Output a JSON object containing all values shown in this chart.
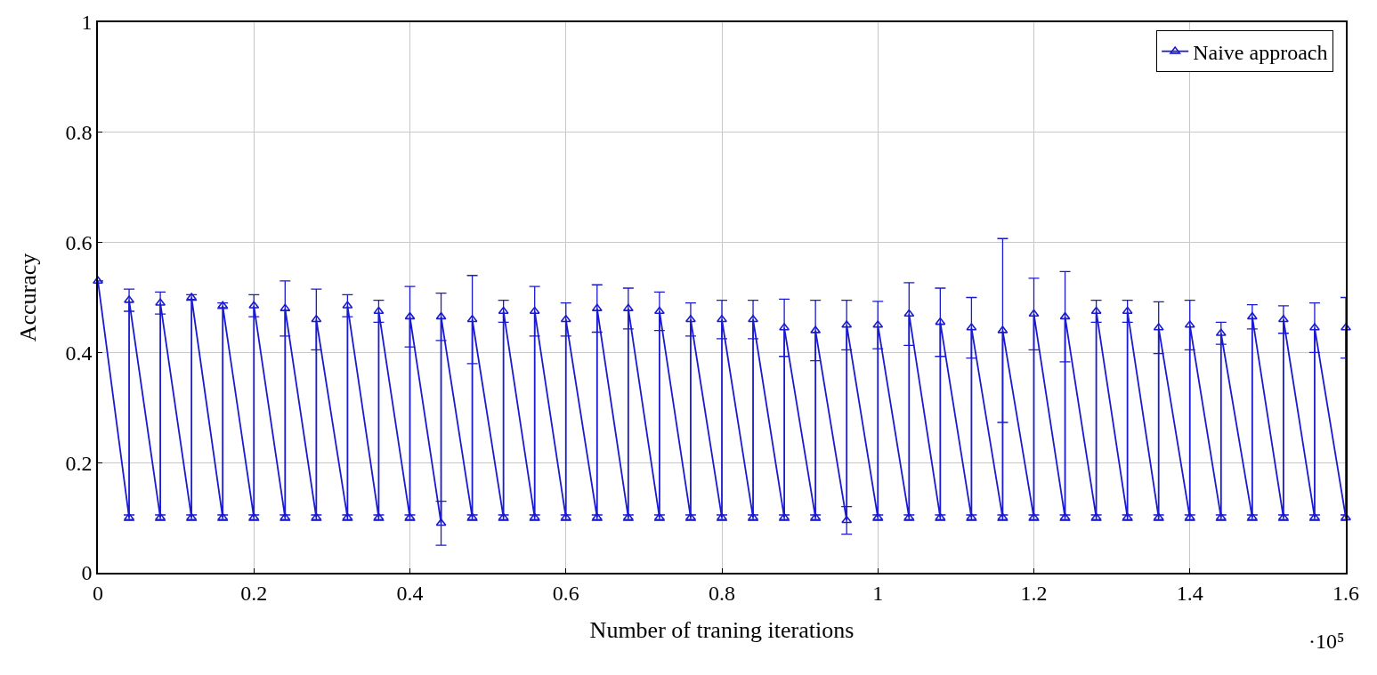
{
  "chart_data": {
    "type": "line",
    "xlabel": "Number of traning iterations",
    "ylabel": "Accuracy",
    "annotations": [
      "·10⁵"
    ],
    "x": [
      0,
      0.04,
      0.04,
      0.08,
      0.08,
      0.12,
      0.12,
      0.16,
      0.16,
      0.2,
      0.2,
      0.24,
      0.24,
      0.28,
      0.28,
      0.32,
      0.32,
      0.36,
      0.36,
      0.4,
      0.4,
      0.44,
      0.44,
      0.48,
      0.48,
      0.52,
      0.52,
      0.56,
      0.56,
      0.6,
      0.6,
      0.64,
      0.64,
      0.68,
      0.68,
      0.72,
      0.72,
      0.76,
      0.76,
      0.8,
      0.8,
      0.84,
      0.84,
      0.88,
      0.88,
      0.92,
      0.92,
      0.96,
      0.96,
      1.0,
      1.0,
      1.04,
      1.04,
      1.08,
      1.08,
      1.12,
      1.12,
      1.16,
      1.16,
      1.2,
      1.2,
      1.24,
      1.24,
      1.28,
      1.28,
      1.32,
      1.32,
      1.36,
      1.36,
      1.4,
      1.4,
      1.44,
      1.44,
      1.48,
      1.48,
      1.52,
      1.52,
      1.56,
      1.56,
      1.6,
      1.6
    ],
    "series": [
      {
        "name": "Naive approach",
        "color": "#1a1ad0",
        "values": [
          0.53,
          0.1,
          0.495,
          0.1,
          0.49,
          0.1,
          0.5,
          0.1,
          0.485,
          0.1,
          0.485,
          0.1,
          0.48,
          0.1,
          0.46,
          0.1,
          0.485,
          0.1,
          0.475,
          0.1,
          0.465,
          0.09,
          0.465,
          0.1,
          0.46,
          0.1,
          0.475,
          0.1,
          0.475,
          0.1,
          0.46,
          0.1,
          0.48,
          0.1,
          0.48,
          0.1,
          0.475,
          0.1,
          0.46,
          0.1,
          0.46,
          0.1,
          0.46,
          0.1,
          0.445,
          0.1,
          0.44,
          0.095,
          0.45,
          0.1,
          0.45,
          0.1,
          0.47,
          0.1,
          0.455,
          0.1,
          0.445,
          0.1,
          0.44,
          0.1,
          0.47,
          0.1,
          0.465,
          0.1,
          0.475,
          0.1,
          0.475,
          0.1,
          0.445,
          0.1,
          0.45,
          0.1,
          0.435,
          0.1,
          0.465,
          0.1,
          0.46,
          0.1,
          0.445,
          0.1,
          0.445
        ],
        "errors": [
          null,
          0.005,
          0.02,
          0.005,
          0.02,
          0.005,
          0.005,
          0.005,
          0.005,
          0.005,
          0.02,
          0.005,
          0.05,
          0.005,
          0.055,
          0.005,
          0.02,
          0.005,
          0.02,
          0.005,
          0.055,
          0.04,
          0.043,
          0.005,
          0.08,
          0.005,
          0.02,
          0.005,
          0.045,
          0.005,
          0.03,
          0.005,
          0.043,
          0.005,
          0.037,
          0.005,
          0.035,
          0.005,
          0.03,
          0.005,
          0.035,
          0.005,
          0.035,
          0.005,
          0.052,
          0.005,
          0.055,
          0.025,
          0.045,
          0.005,
          0.043,
          0.005,
          0.057,
          0.005,
          0.062,
          0.005,
          0.055,
          0.005,
          0.167,
          0.005,
          0.065,
          0.005,
          0.082,
          0.005,
          0.02,
          0.005,
          0.02,
          0.005,
          0.047,
          0.005,
          0.045,
          0.005,
          0.02,
          0.005,
          0.022,
          0.005,
          0.025,
          0.005,
          0.045,
          0.005,
          0.055
        ]
      }
    ],
    "xlim": [
      0,
      1.6
    ],
    "xticks": [
      0,
      0.2,
      0.4,
      0.6,
      0.8,
      1,
      1.2,
      1.4,
      1.6
    ],
    "ylim": [
      0,
      1
    ],
    "yticks": [
      0,
      0.2,
      0.4,
      0.6,
      0.8,
      1
    ],
    "grid": true,
    "legend": "top right",
    "marker": "triangle",
    "line_style": "solid"
  }
}
